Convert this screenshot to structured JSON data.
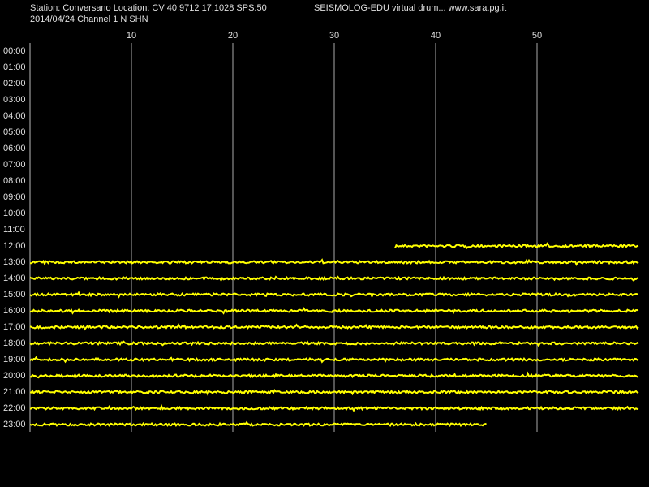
{
  "chart_data": {
    "type": "drum",
    "title": "Station: Conversano Location: CV 40.9712 17.1028 SPS:50",
    "title_right": "SEISMOLOG-EDU virtual drum... www.sara.pg.it",
    "subtitle": "2014/04/24  Channel 1 N SHN",
    "categories": [
      "00:00",
      "01:00",
      "02:00",
      "03:00",
      "04:00",
      "05:00",
      "06:00",
      "07:00",
      "08:00",
      "09:00",
      "10:00",
      "11:00",
      "12:00",
      "13:00",
      "14:00",
      "15:00",
      "16:00",
      "17:00",
      "18:00",
      "19:00",
      "20:00",
      "21:00",
      "22:00",
      "23:00"
    ],
    "starts": [
      null,
      null,
      null,
      null,
      null,
      null,
      null,
      null,
      null,
      null,
      null,
      null,
      36,
      0,
      0,
      0,
      0,
      0,
      0,
      0,
      0,
      0,
      0,
      0
    ],
    "ends": [
      null,
      null,
      null,
      null,
      null,
      null,
      null,
      null,
      null,
      null,
      null,
      null,
      60,
      60,
      60,
      60,
      60,
      60,
      60,
      60,
      60,
      60,
      60,
      45
    ],
    "xlim": [
      0,
      60
    ],
    "xticks": [
      10,
      20,
      30,
      40,
      50
    ],
    "grid": true,
    "color": "#ffff00"
  }
}
